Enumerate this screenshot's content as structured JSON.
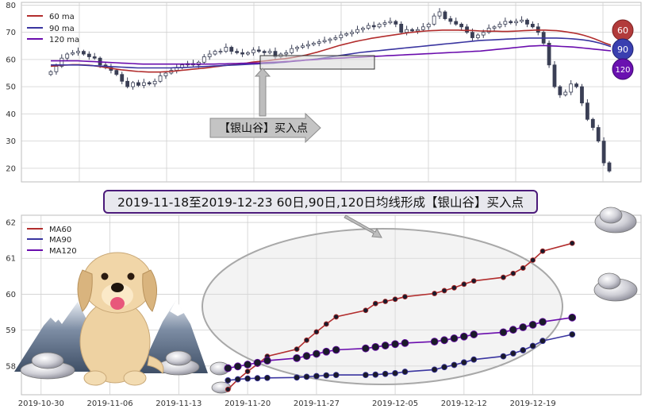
{
  "annotation": {
    "banner": "2019-11-18至2019-12-23 60日,90日,120日均线形成【银山谷】买入点",
    "arrow_label": "【银山谷】买入点"
  },
  "colors": {
    "ma60": "#b22d2d",
    "ma90": "#3a35a0",
    "ma120": "#6a0dad",
    "candle_up": "#ffffff",
    "candle_down": "#3a3f55",
    "grid": "#d0d0d0",
    "banner_bg": "#e8e8ee",
    "banner_border": "#4b1a7a"
  },
  "chart_data": [
    {
      "type": "candlestick",
      "title": "",
      "xlabel": "",
      "ylabel": "",
      "ylim": [
        15,
        81
      ],
      "yticks": [
        20,
        30,
        40,
        50,
        60,
        70,
        80
      ],
      "grid": true,
      "legend_position": "top-left",
      "legend": [
        "60 ma",
        "90 ma",
        "120 ma"
      ],
      "badges": [
        "60",
        "90",
        "120"
      ],
      "close": [
        55.5,
        57.5,
        60.5,
        62,
        62.5,
        63,
        62,
        61,
        60.5,
        58,
        57,
        56,
        54.5,
        52,
        50,
        51.5,
        50.5,
        51.5,
        51,
        52,
        54,
        55,
        56,
        57,
        58,
        58.5,
        58,
        59,
        61,
        62,
        63,
        63,
        64.5,
        63,
        62.5,
        62,
        62.5,
        63.5,
        63,
        62.5,
        63,
        61,
        62,
        62.5,
        64,
        64.5,
        65,
        65.5,
        66,
        66.5,
        67,
        67.5,
        68,
        69,
        69.5,
        70,
        71,
        71.5,
        72.5,
        72,
        73,
        73.5,
        74,
        73,
        70,
        71,
        70.5,
        71,
        72,
        73,
        76,
        77.5,
        75,
        74,
        73,
        72,
        70,
        68,
        69,
        70,
        71.5,
        72,
        73,
        74,
        73.5,
        74,
        74.5,
        73,
        72,
        70,
        66,
        58,
        50,
        47,
        48,
        51,
        50,
        44,
        38,
        35,
        30,
        22,
        19
      ],
      "series": [
        {
          "name": "60 ma",
          "values": [
            57.5,
            57.7,
            57.9,
            58.0,
            58.1,
            58.1,
            58.0,
            57.9,
            57.7,
            57.4,
            57.1,
            56.8,
            56.5,
            56.2,
            56.0,
            55.8,
            55.6,
            55.5,
            55.4,
            55.4,
            55.4,
            55.5,
            55.6,
            55.8,
            56.0,
            56.2,
            56.4,
            56.6,
            56.8,
            57.0,
            57.3,
            57.5,
            57.8,
            58.0,
            58.2,
            58.5,
            58.7,
            59.0,
            59.2,
            59.4,
            59.6,
            59.9,
            60.1,
            60.3,
            60.6,
            60.9,
            61.3,
            61.7,
            62.2,
            62.7,
            63.3,
            63.9,
            64.5,
            65.1,
            65.6,
            66.1,
            66.6,
            67.0,
            67.4,
            67.8,
            68.1,
            68.4,
            68.7,
            69.0,
            69.3,
            69.6,
            69.9,
            70.1,
            70.3,
            70.5,
            70.6,
            70.7,
            70.8,
            70.8,
            70.8,
            70.8,
            70.7,
            70.7,
            70.6,
            70.5,
            70.5,
            70.4,
            70.4,
            70.3,
            70.3,
            70.4,
            70.5,
            70.6,
            70.7,
            70.8,
            70.8,
            70.8,
            70.7,
            70.6,
            70.4,
            70.1,
            69.8,
            69.4,
            68.9,
            68.3,
            67.6,
            66.8,
            66.0,
            65.3
          ]
        },
        {
          "name": "90 ma",
          "values": [
            58.0,
            58.0,
            58.0,
            58.0,
            58.0,
            58.0,
            57.9,
            57.8,
            57.7,
            57.6,
            57.5,
            57.4,
            57.3,
            57.2,
            57.1,
            57.0,
            56.9,
            56.9,
            56.9,
            56.9,
            56.9,
            56.9,
            56.9,
            57.0,
            57.0,
            57.1,
            57.2,
            57.3,
            57.4,
            57.5,
            57.6,
            57.7,
            57.8,
            57.9,
            58.0,
            58.1,
            58.2,
            58.3,
            58.4,
            58.5,
            58.6,
            58.7,
            58.9,
            59.0,
            59.2,
            59.4,
            59.6,
            59.8,
            60.0,
            60.2,
            60.5,
            60.8,
            61.1,
            61.4,
            61.7,
            62.0,
            62.3,
            62.6,
            62.8,
            63.0,
            63.2,
            63.4,
            63.6,
            63.8,
            64.0,
            64.2,
            64.4,
            64.6,
            64.8,
            65.0,
            65.2,
            65.4,
            65.6,
            65.8,
            66.0,
            66.2,
            66.4,
            66.6,
            66.8,
            67.0,
            67.1,
            67.2,
            67.3,
            67.4,
            67.5,
            67.6,
            67.7,
            67.8,
            67.9,
            67.9,
            67.9,
            67.9,
            67.9,
            67.9,
            67.8,
            67.7,
            67.6,
            67.4,
            67.2,
            66.9,
            66.5,
            66.0,
            65.4,
            64.7
          ]
        },
        {
          "name": "120 ma",
          "values": [
            59.5,
            59.5,
            59.5,
            59.5,
            59.5,
            59.5,
            59.4,
            59.3,
            59.2,
            59.1,
            59.0,
            58.9,
            58.8,
            58.7,
            58.6,
            58.5,
            58.4,
            58.3,
            58.3,
            58.3,
            58.3,
            58.3,
            58.3,
            58.3,
            58.3,
            58.3,
            58.3,
            58.3,
            58.3,
            58.3,
            58.3,
            58.4,
            58.4,
            58.5,
            58.5,
            58.6,
            58.6,
            58.7,
            58.7,
            58.8,
            58.9,
            59.0,
            59.1,
            59.2,
            59.3,
            59.5,
            59.6,
            59.8,
            59.9,
            60.0,
            60.2,
            60.3,
            60.4,
            60.5,
            60.6,
            60.7,
            60.8,
            60.9,
            61.0,
            61.1,
            61.2,
            61.3,
            61.4,
            61.5,
            61.6,
            61.7,
            61.8,
            61.9,
            62.0,
            62.1,
            62.2,
            62.3,
            62.4,
            62.5,
            62.6,
            62.7,
            62.8,
            62.9,
            63.0,
            63.1,
            63.3,
            63.5,
            63.7,
            63.9,
            64.1,
            64.3,
            64.5,
            64.7,
            64.9,
            65.0,
            65.1,
            65.1,
            65.0,
            64.9,
            64.8,
            64.7,
            64.6,
            64.4,
            64.2,
            64.0,
            63.8,
            63.6,
            63.4,
            63.2
          ]
        }
      ]
    },
    {
      "type": "line",
      "title": "",
      "xlabel": "",
      "ylabel": "",
      "ylim": [
        57.2,
        62.2
      ],
      "yticks": [
        58,
        59,
        60,
        61,
        62
      ],
      "grid": true,
      "legend_position": "top-left",
      "x_range": [
        "2019-10-28",
        "2019-12-30"
      ],
      "xticks": [
        "2019-10-30",
        "2019-11-06",
        "2019-11-13",
        "2019-11-20",
        "2019-11-27",
        "2019-12-05",
        "2019-12-12",
        "2019-12-19"
      ],
      "x": [
        "2019-11-18",
        "2019-11-19",
        "2019-11-20",
        "2019-11-21",
        "2019-11-22",
        "2019-11-25",
        "2019-11-26",
        "2019-11-27",
        "2019-11-28",
        "2019-11-29",
        "2019-12-02",
        "2019-12-03",
        "2019-12-04",
        "2019-12-05",
        "2019-12-06",
        "2019-12-09",
        "2019-12-10",
        "2019-12-11",
        "2019-12-12",
        "2019-12-13",
        "2019-12-16",
        "2019-12-17",
        "2019-12-18",
        "2019-12-19",
        "2019-12-20",
        "2019-12-23"
      ],
      "series": [
        {
          "name": "MA60",
          "values": [
            57.35,
            57.62,
            57.85,
            58.05,
            58.27,
            58.47,
            58.72,
            58.95,
            59.17,
            59.37,
            59.55,
            59.74,
            59.8,
            59.86,
            59.93,
            60.02,
            60.1,
            60.18,
            60.28,
            60.37,
            60.47,
            60.58,
            60.73,
            60.95,
            61.2,
            61.42
          ]
        },
        {
          "name": "MA90",
          "values": [
            57.6,
            57.63,
            57.65,
            57.66,
            57.67,
            57.68,
            57.7,
            57.72,
            57.74,
            57.75,
            57.75,
            57.76,
            57.78,
            57.8,
            57.84,
            57.9,
            57.97,
            58.03,
            58.1,
            58.18,
            58.27,
            58.35,
            58.44,
            58.56,
            58.7,
            58.88
          ]
        },
        {
          "name": "MA120",
          "values": [
            57.94,
            57.99,
            58.04,
            58.09,
            58.15,
            58.22,
            58.28,
            58.34,
            58.4,
            58.45,
            58.49,
            58.53,
            58.57,
            58.61,
            58.64,
            58.68,
            58.72,
            58.77,
            58.82,
            58.88,
            58.94,
            59.01,
            59.08,
            59.15,
            59.23,
            59.35
          ]
        }
      ]
    }
  ]
}
